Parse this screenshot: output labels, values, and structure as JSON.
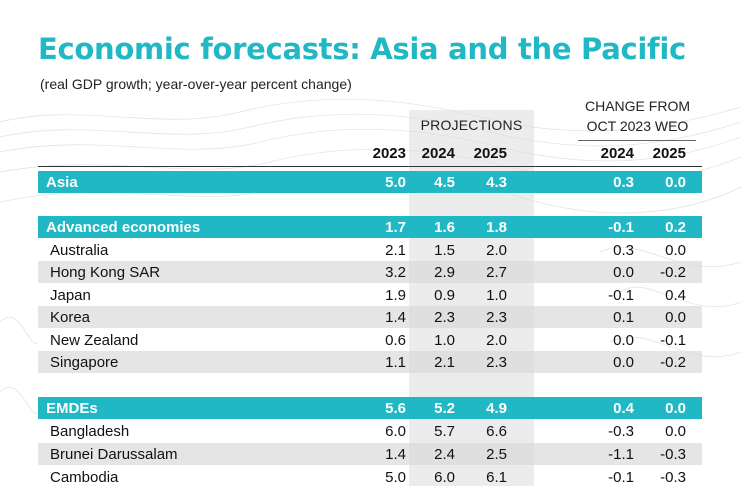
{
  "title": "Economic forecasts: Asia and the Pacific",
  "subtitle": "(real GDP growth; year-over-year percent change)",
  "projections_label": "PROJECTIONS",
  "change_label_line1": "CHANGE FROM",
  "change_label_line2": "OCT 2023 WEO",
  "years": [
    "2023",
    "2024",
    "2025",
    "2024",
    "2025"
  ],
  "colors": {
    "accent": "#1fb8c4",
    "stripe": "#dadada"
  },
  "rows": [
    {
      "name": "Asia",
      "kind": "band",
      "values": [
        "5.0",
        "4.5",
        "4.3",
        "0.3",
        "0.0"
      ]
    },
    {
      "name": "Advanced economies",
      "kind": "band",
      "values": [
        "1.7",
        "1.6",
        "1.8",
        "-0.1",
        "0.2"
      ]
    },
    {
      "name": "Australia",
      "kind": "sub",
      "values": [
        "2.1",
        "1.5",
        "2.0",
        "0.3",
        "0.0"
      ]
    },
    {
      "name": "Hong Kong SAR",
      "kind": "sub stripe",
      "values": [
        "3.2",
        "2.9",
        "2.7",
        "0.0",
        "-0.2"
      ]
    },
    {
      "name": "Japan",
      "kind": "sub",
      "values": [
        "1.9",
        "0.9",
        "1.0",
        "-0.1",
        "0.4"
      ]
    },
    {
      "name": "Korea",
      "kind": "sub stripe",
      "values": [
        "1.4",
        "2.3",
        "2.3",
        "0.1",
        "0.0"
      ]
    },
    {
      "name": "New Zealand",
      "kind": "sub",
      "values": [
        "0.6",
        "1.0",
        "2.0",
        "0.0",
        "-0.1"
      ]
    },
    {
      "name": "Singapore",
      "kind": "sub stripe",
      "values": [
        "1.1",
        "2.1",
        "2.3",
        "0.0",
        "-0.2"
      ]
    },
    {
      "name": "EMDEs",
      "kind": "band",
      "values": [
        "5.6",
        "5.2",
        "4.9",
        "0.4",
        "0.0"
      ]
    },
    {
      "name": "Bangladesh",
      "kind": "sub",
      "values": [
        "6.0",
        "5.7",
        "6.6",
        "-0.3",
        "0.0"
      ]
    },
    {
      "name": "Brunei Darussalam",
      "kind": "sub stripe",
      "values": [
        "1.4",
        "2.4",
        "2.5",
        "-1.1",
        "-0.3"
      ]
    },
    {
      "name": "Cambodia",
      "kind": "sub",
      "values": [
        "5.0",
        "6.0",
        "6.1",
        "-0.1",
        "-0.3"
      ]
    }
  ]
}
